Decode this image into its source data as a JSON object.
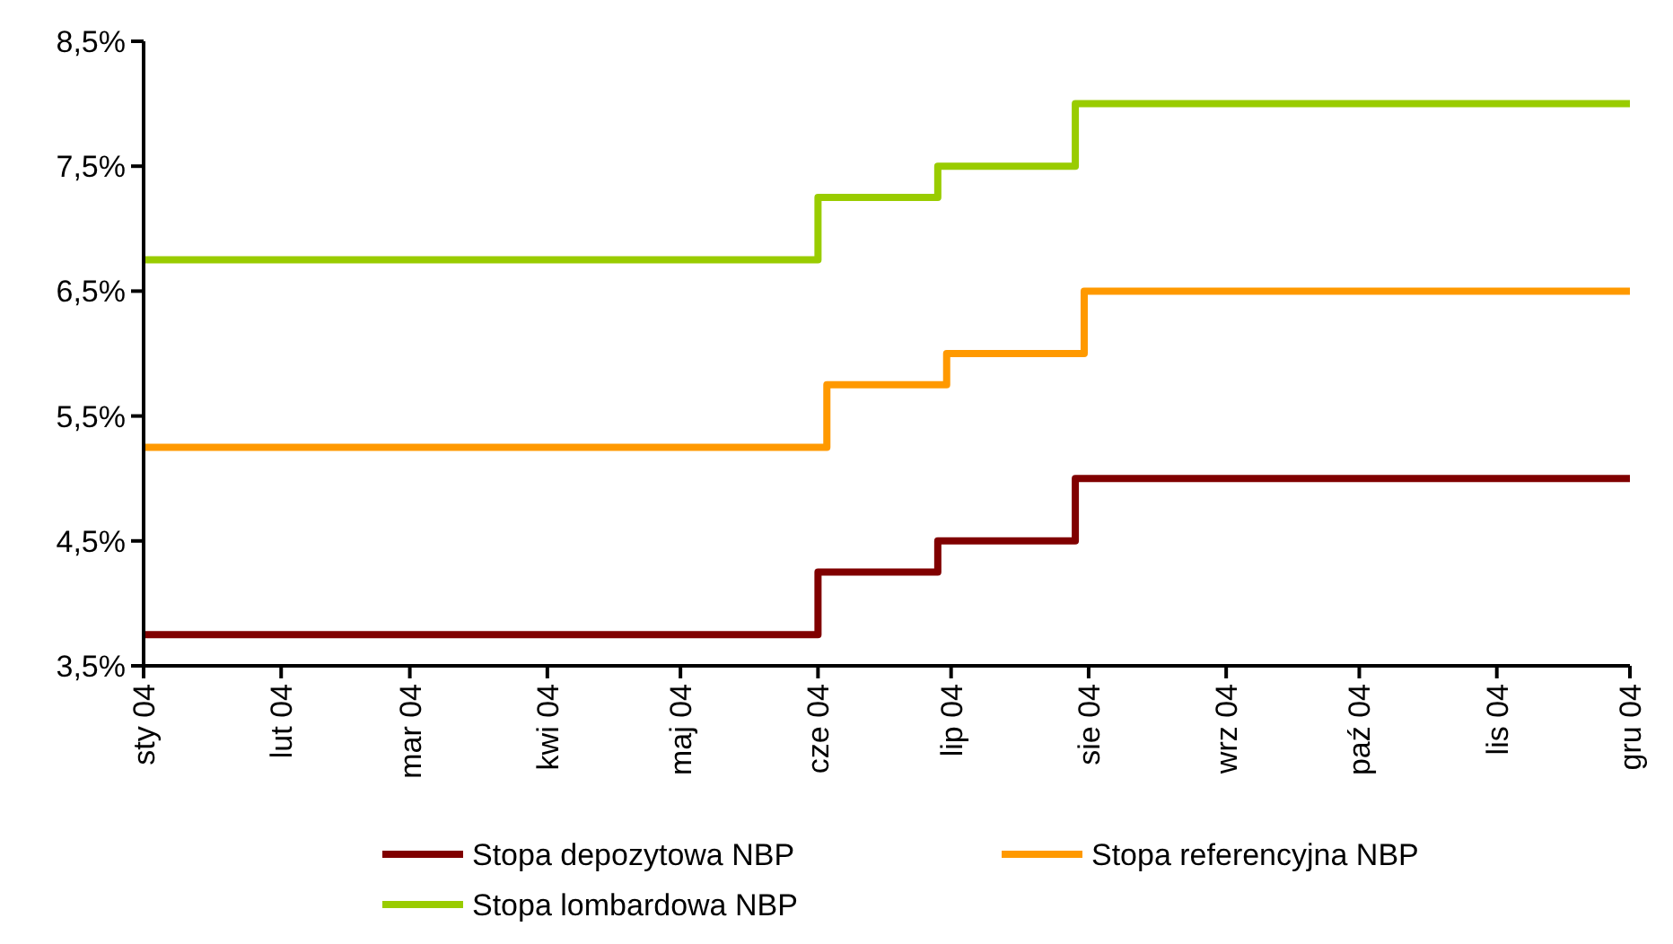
{
  "chart_data": {
    "type": "step",
    "xlim": [
      "2004-01-01",
      "2004-12-01"
    ],
    "xticks": [
      {
        "value": "2004-01-01",
        "label": "sty 04"
      },
      {
        "value": "2004-02-01",
        "label": "lut 04"
      },
      {
        "value": "2004-03-01",
        "label": "mar 04"
      },
      {
        "value": "2004-04-01",
        "label": "kwi 04"
      },
      {
        "value": "2004-05-01",
        "label": "maj 04"
      },
      {
        "value": "2004-06-01",
        "label": "cze 04"
      },
      {
        "value": "2004-07-01",
        "label": "lip 04"
      },
      {
        "value": "2004-08-01",
        "label": "sie 04"
      },
      {
        "value": "2004-09-01",
        "label": "wrz 04"
      },
      {
        "value": "2004-10-01",
        "label": "paź 04"
      },
      {
        "value": "2004-11-01",
        "label": "lis 04"
      },
      {
        "value": "2004-12-01",
        "label": "gru 04"
      }
    ],
    "ylim": [
      3.5,
      8.5
    ],
    "yticks": [
      {
        "value": 3.5,
        "label": "3,5%"
      },
      {
        "value": 4.5,
        "label": "4,5%"
      },
      {
        "value": 5.5,
        "label": "5,5%"
      },
      {
        "value": 6.5,
        "label": "6,5%"
      },
      {
        "value": 7.5,
        "label": "7,5%"
      },
      {
        "value": 8.5,
        "label": "8,5%"
      }
    ],
    "grid": false,
    "legend": "bottom",
    "line_style": "solid",
    "marker": "none",
    "series": [
      {
        "name": "Stopa depozytowa NBP",
        "color": "#800000",
        "x": [
          "2004-01-01",
          "2004-06-01",
          "2004-06-28",
          "2004-07-29",
          "2004-12-01"
        ],
        "values": [
          3.75,
          4.25,
          4.5,
          5.0,
          5.0
        ]
      },
      {
        "name": "Stopa referencyjna NBP",
        "color": "#ff9900",
        "x": [
          "2004-01-01",
          "2004-06-03",
          "2004-06-30",
          "2004-07-31",
          "2004-12-01"
        ],
        "values": [
          5.25,
          5.75,
          6.0,
          6.5,
          6.5
        ]
      },
      {
        "name": "Stopa lombardowa NBP",
        "color": "#99cc00",
        "x": [
          "2004-01-01",
          "2004-06-01",
          "2004-06-28",
          "2004-07-29",
          "2004-12-01"
        ],
        "values": [
          6.75,
          7.25,
          7.5,
          8.0,
          8.0
        ]
      }
    ]
  }
}
